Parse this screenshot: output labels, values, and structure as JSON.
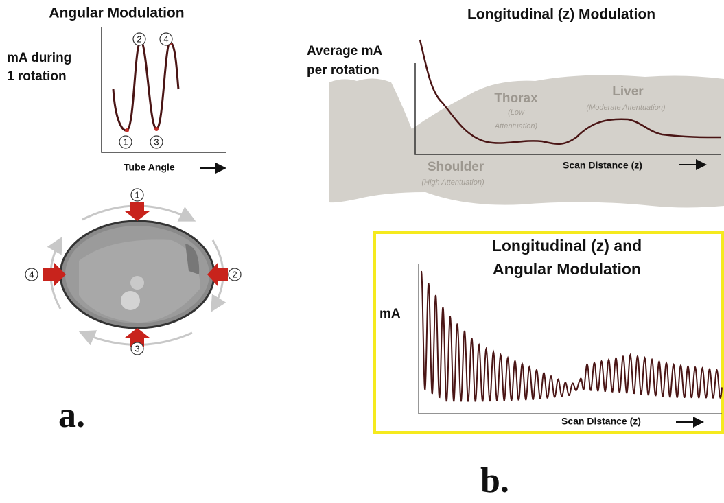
{
  "panel_a": {
    "title": "Angular Modulation",
    "y_label": [
      "mA during",
      "1 rotation"
    ],
    "x_label": "Tube Angle",
    "points": [
      "1",
      "2",
      "3",
      "4"
    ],
    "arrows": [
      "1",
      "2",
      "3",
      "4"
    ],
    "label": "a."
  },
  "panel_b_top": {
    "title": "Longitudinal (z) Modulation",
    "y_label": [
      "Average mA",
      "per rotation"
    ],
    "regions": [
      {
        "name": "Thorax",
        "note": [
          "(Low",
          "Attentuation)"
        ]
      },
      {
        "name": "Liver",
        "note": [
          "(Moderate Attentuation)"
        ]
      },
      {
        "name": "Shoulder",
        "note": [
          "(High Attentuation)"
        ]
      }
    ],
    "x_label": "Scan Distance (z)"
  },
  "panel_b_bottom": {
    "title": [
      "Longitudinal (z) and",
      "Angular Modulation"
    ],
    "y_label": "mA",
    "x_label": "Scan Distance (z)"
  },
  "label": "b."
}
